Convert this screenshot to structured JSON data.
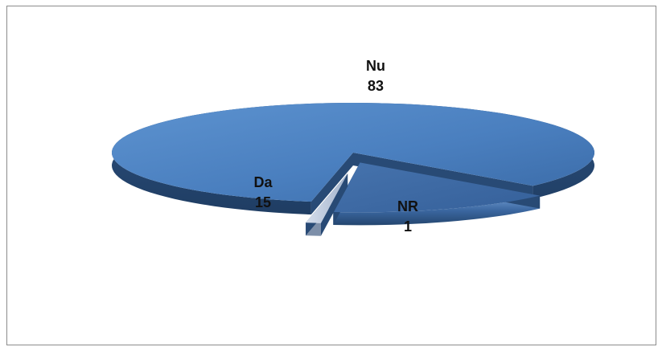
{
  "chart_data": {
    "type": "pie",
    "style": "3d-exploded",
    "title": "",
    "categories": [
      "Nu",
      "Da",
      "NR"
    ],
    "values": [
      83,
      15,
      1
    ],
    "data_labels": [
      {
        "category": "Nu",
        "value": "83"
      },
      {
        "category": "Da",
        "value": "15"
      },
      {
        "category": "NR",
        "value": "1"
      }
    ],
    "legend": "none",
    "colors": {
      "Nu": "#4a7fbf",
      "Da": "#3d6aa6",
      "NR": "#b4c2d8"
    }
  }
}
